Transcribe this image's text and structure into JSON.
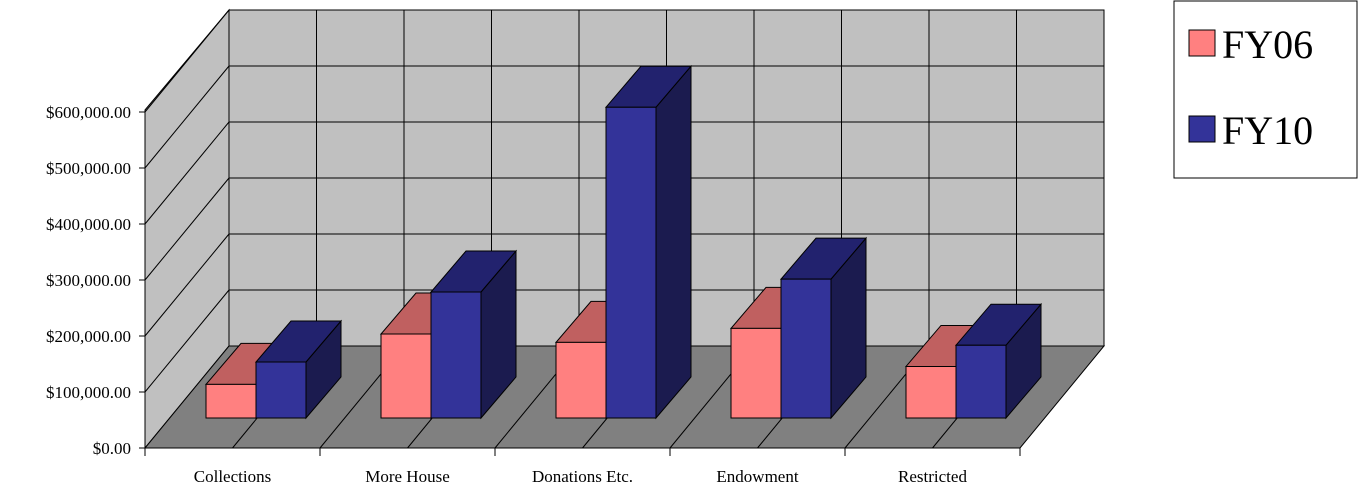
{
  "chart_data": {
    "type": "bar",
    "categories": [
      "Collections",
      "More House",
      "Donations Etc.",
      "Endowment",
      "Restricted"
    ],
    "series": [
      {
        "name": "FY06",
        "values": [
          60000,
          150000,
          135000,
          160000,
          92000
        ]
      },
      {
        "name": "FY10",
        "values": [
          100000,
          225000,
          555000,
          248000,
          130000
        ]
      }
    ],
    "y_ticks": [
      "$0.00",
      "$100,000.00",
      "$200,000.00",
      "$300,000.00",
      "$400,000.00",
      "$500,000.00",
      "$600,000.00"
    ],
    "ylim": [
      0,
      600000
    ],
    "grid": true,
    "legend_position": "top-right",
    "colors": {
      "FY06_front": "#ff8080",
      "FY06_top": "#c06060",
      "FY10_front": "#333399",
      "FY10_top": "#22226e",
      "FY10_side": "#1b1b4f",
      "back_wall": "#c0c0c0",
      "floor": "#808080"
    }
  }
}
